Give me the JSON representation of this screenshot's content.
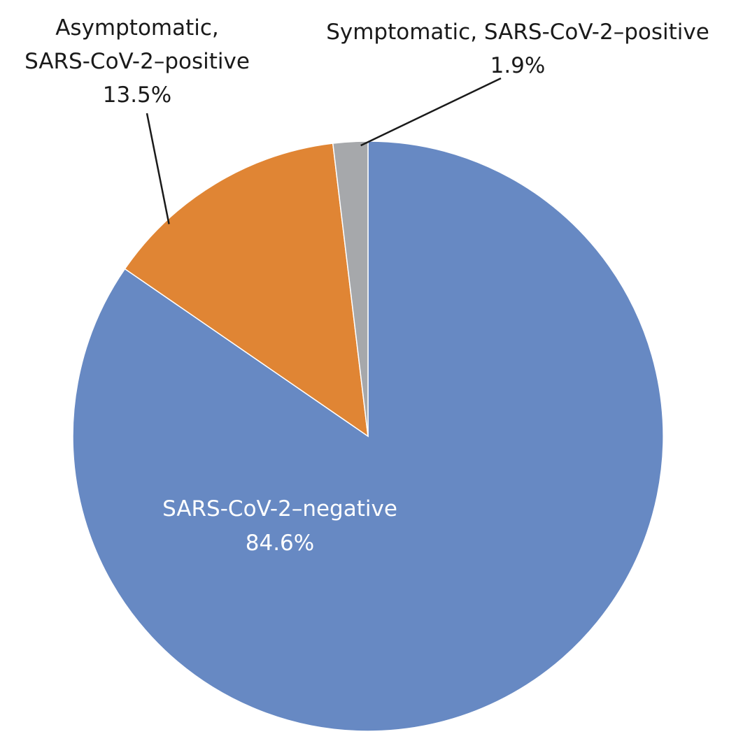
{
  "chart_data": {
    "type": "pie",
    "start_angle_deg": 0,
    "direction": "clockwise",
    "slices": [
      {
        "label_lines": [
          "SARS-CoV-2–negative"
        ],
        "value_label": "84.6%",
        "value": 84.6,
        "color": "#6789C3",
        "label_position": "inside"
      },
      {
        "label_lines": [
          "Asymptomatic,",
          "SARS-CoV-2–positive"
        ],
        "value_label": "13.5%",
        "value": 13.5,
        "color": "#E08534",
        "label_position": "outside-top-left"
      },
      {
        "label_lines": [
          "Symptomatic, SARS-CoV-2–positive"
        ],
        "value_label": "1.9%",
        "value": 1.9,
        "color": "#A6A8AB",
        "label_position": "outside-top-right"
      }
    ]
  }
}
